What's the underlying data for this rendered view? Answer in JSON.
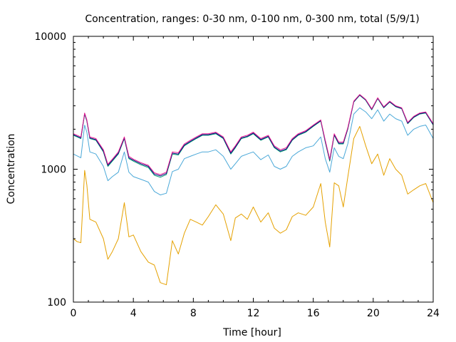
{
  "chart_data": {
    "type": "line",
    "title": "Concentration, ranges: 0-30 nm, 0-100 nm, 0-300 nm, total (5/9/1)",
    "xlabel": "Time [hour]",
    "ylabel": "Concentration",
    "xlim": [
      0,
      24
    ],
    "ylim": [
      100,
      10000
    ],
    "yscale": "log",
    "xticks": [
      0,
      4,
      8,
      12,
      16,
      20,
      24
    ],
    "xtick_labels": [
      "0",
      "4",
      "8",
      "12",
      "16",
      "20",
      "24"
    ],
    "yticks": [
      100,
      1000,
      10000
    ],
    "ytick_labels": [
      "100",
      "1000",
      "10000"
    ],
    "grid": false,
    "legend": "none",
    "x": [
      0,
      0.25,
      0.5,
      0.75,
      0.9,
      1.1,
      1.5,
      2.0,
      2.3,
      2.6,
      3.0,
      3.4,
      3.7,
      4.0,
      4.5,
      5.0,
      5.4,
      5.8,
      6.2,
      6.6,
      7.0,
      7.4,
      7.8,
      8.2,
      8.6,
      9.0,
      9.5,
      10.0,
      10.5,
      10.8,
      11.2,
      11.6,
      12.0,
      12.5,
      13.0,
      13.4,
      13.8,
      14.2,
      14.6,
      15.0,
      15.5,
      16.0,
      16.5,
      16.8,
      17.1,
      17.4,
      17.7,
      18.0,
      18.3,
      18.7,
      19.1,
      19.5,
      19.9,
      20.3,
      20.7,
      21.1,
      21.5,
      21.9,
      22.3,
      22.7,
      23.1,
      23.5,
      24.0
    ],
    "series": [
      {
        "color": "#e5a100",
        "values": [
          300,
          285,
          280,
          980,
          760,
          420,
          400,
          300,
          210,
          240,
          300,
          560,
          310,
          320,
          240,
          200,
          190,
          140,
          135,
          290,
          230,
          330,
          420,
          400,
          380,
          440,
          540,
          460,
          290,
          430,
          460,
          420,
          520,
          400,
          470,
          360,
          330,
          350,
          440,
          470,
          450,
          520,
          780,
          400,
          260,
          790,
          750,
          520,
          870,
          1700,
          2100,
          1500,
          1100,
          1300,
          900,
          1200,
          1000,
          900,
          650,
          700,
          750,
          780,
          560
        ]
      },
      {
        "color": "#4aa8d8",
        "values": [
          1300,
          1260,
          1220,
          2150,
          1900,
          1350,
          1300,
          1050,
          820,
          880,
          950,
          1350,
          950,
          880,
          840,
          800,
          680,
          640,
          660,
          960,
          1000,
          1200,
          1250,
          1300,
          1350,
          1350,
          1400,
          1250,
          1000,
          1100,
          1250,
          1300,
          1350,
          1180,
          1280,
          1050,
          1000,
          1050,
          1250,
          1350,
          1450,
          1500,
          1750,
          1200,
          950,
          1450,
          1250,
          1200,
          1550,
          2600,
          2900,
          2700,
          2400,
          2800,
          2300,
          2600,
          2400,
          2300,
          1800,
          2000,
          2100,
          2150,
          1700
        ]
      },
      {
        "color": "#009e73",
        "values": [
          1800,
          1750,
          1700,
          2600,
          2300,
          1700,
          1650,
          1350,
          1050,
          1150,
          1300,
          1700,
          1200,
          1150,
          1080,
          1030,
          900,
          870,
          910,
          1300,
          1280,
          1500,
          1600,
          1700,
          1800,
          1800,
          1850,
          1700,
          1300,
          1450,
          1700,
          1750,
          1850,
          1650,
          1750,
          1450,
          1350,
          1400,
          1650,
          1800,
          1900,
          2100,
          2300,
          1600,
          1150,
          1800,
          1550,
          1550,
          2000,
          3200,
          3600,
          3300,
          2800,
          3400,
          2900,
          3200,
          2950,
          2850,
          2200,
          2450,
          2600,
          2650,
          2150
        ]
      },
      {
        "color": "#0a0a80",
        "values": [
          1820,
          1770,
          1720,
          2620,
          2320,
          1720,
          1670,
          1370,
          1070,
          1170,
          1320,
          1720,
          1220,
          1170,
          1100,
          1050,
          920,
          890,
          930,
          1320,
          1300,
          1520,
          1620,
          1720,
          1820,
          1820,
          1870,
          1720,
          1320,
          1470,
          1720,
          1770,
          1870,
          1670,
          1770,
          1470,
          1370,
          1420,
          1670,
          1820,
          1920,
          2120,
          2320,
          1620,
          1170,
          1820,
          1570,
          1570,
          2020,
          3220,
          3620,
          3320,
          2820,
          3420,
          2920,
          3220,
          2970,
          2870,
          2220,
          2470,
          2620,
          2670,
          2170
        ]
      },
      {
        "color": "#e5198f",
        "values": [
          1850,
          1800,
          1750,
          2650,
          2350,
          1750,
          1700,
          1400,
          1090,
          1190,
          1350,
          1750,
          1250,
          1190,
          1120,
          1070,
          940,
          910,
          950,
          1350,
          1330,
          1550,
          1650,
          1750,
          1850,
          1850,
          1900,
          1750,
          1350,
          1500,
          1750,
          1800,
          1900,
          1700,
          1800,
          1500,
          1400,
          1450,
          1700,
          1850,
          1950,
          2150,
          2350,
          1650,
          1190,
          1850,
          1600,
          1600,
          2050,
          3250,
          3650,
          3350,
          2850,
          3450,
          2950,
          3250,
          3000,
          2900,
          2250,
          2500,
          2650,
          2700,
          2200
        ]
      }
    ]
  }
}
